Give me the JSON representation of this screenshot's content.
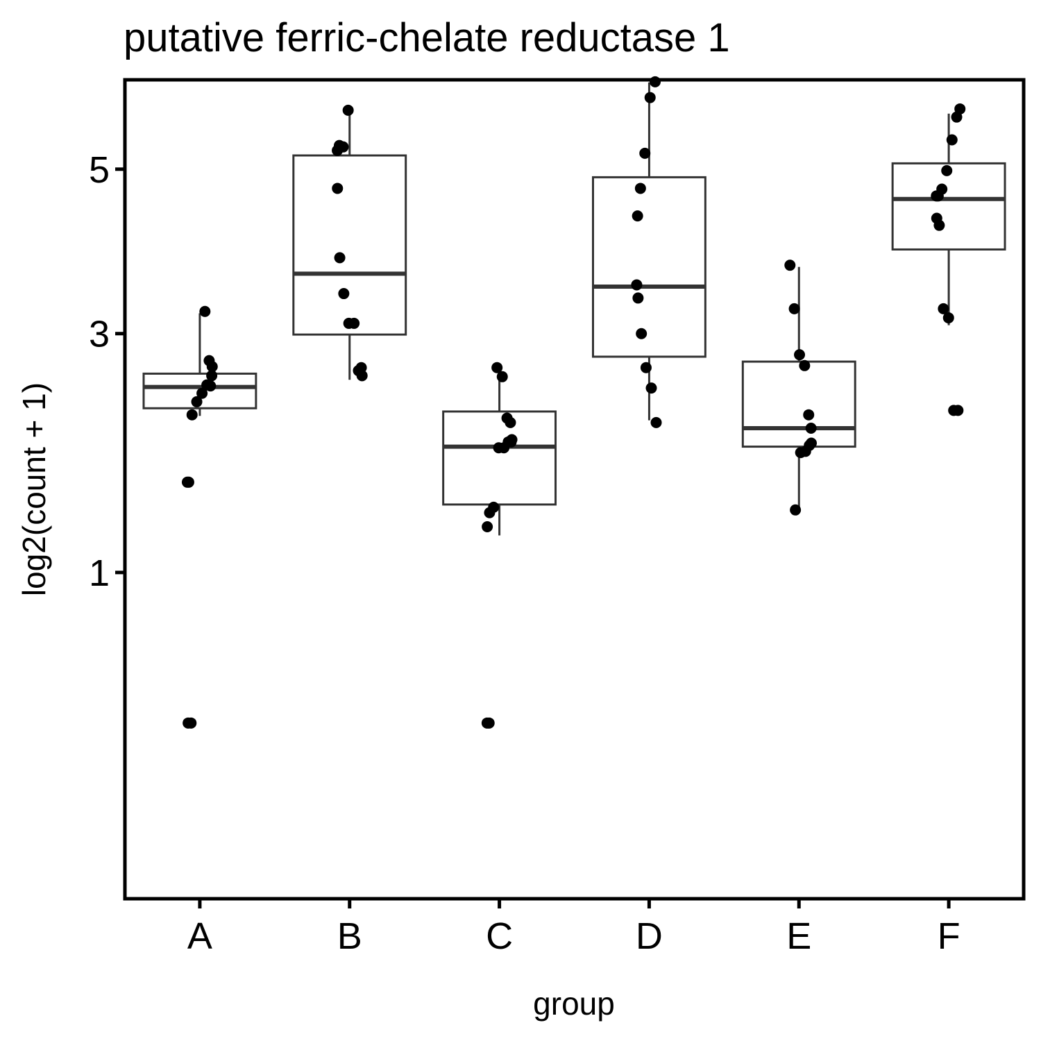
{
  "chart_data": {
    "type": "box",
    "title": "putative ferric-chelate reductase 1",
    "xlabel": "group",
    "ylabel": "log2(count + 1)",
    "y_scale": "sqrt",
    "ylim": [
      0,
      6.3
    ],
    "y_ticks": [
      1,
      3,
      5
    ],
    "grid": false,
    "categories": [
      "A",
      "B",
      "C",
      "D",
      "E",
      "F"
    ],
    "boxes": [
      {
        "group": "A",
        "whisker_low": 2.19,
        "q1": 2.26,
        "median": 2.46,
        "q3": 2.59,
        "whisker_high": 3.22
      },
      {
        "group": "B",
        "whisker_low": 2.53,
        "q1": 2.99,
        "median": 3.67,
        "q3": 5.19,
        "whisker_high": 5.81
      },
      {
        "group": "C",
        "whisker_low": 1.24,
        "q1": 1.46,
        "median": 1.92,
        "q3": 2.23,
        "whisker_high": 2.66
      },
      {
        "group": "D",
        "whisker_low": 2.15,
        "q1": 2.76,
        "median": 3.52,
        "q3": 4.89,
        "whisker_high": 6.26
      },
      {
        "group": "E",
        "whisker_low": 1.41,
        "q1": 1.92,
        "median": 2.08,
        "q3": 2.71,
        "whisker_high": 3.75
      },
      {
        "group": "F",
        "whisker_low": 3.09,
        "q1": 3.96,
        "median": 4.6,
        "q3": 5.08,
        "whisker_high": 5.79
      }
    ],
    "points": [
      {
        "group": "A",
        "y": [
          3.24,
          2.72,
          2.57,
          2.66,
          2.47,
          2.48,
          2.4,
          2.32,
          2.2,
          1.63,
          1.63,
          0.29,
          0.29
        ]
      },
      {
        "group": "B",
        "y": [
          5.84,
          5.31,
          5.33,
          5.26,
          4.74,
          3.86,
          3.44,
          3.11,
          3.11,
          2.62,
          2.65,
          2.57
        ]
      },
      {
        "group": "C",
        "y": [
          2.65,
          2.56,
          2.17,
          2.13,
          1.98,
          1.96,
          1.96,
          1.91,
          1.91,
          1.44,
          1.4,
          1.3,
          0.29,
          0.29
        ]
      },
      {
        "group": "D",
        "y": [
          6.27,
          6.03,
          5.22,
          4.74,
          4.38,
          3.54,
          3.39,
          3.0,
          2.65,
          2.45,
          2.13
        ]
      },
      {
        "group": "E",
        "y": [
          3.77,
          3.27,
          2.78,
          2.67,
          2.2,
          2.08,
          1.95,
          1.93,
          1.88,
          1.87,
          1.42
        ]
      },
      {
        "group": "F",
        "y": [
          5.86,
          5.74,
          5.41,
          4.98,
          4.73,
          4.64,
          4.64,
          4.35,
          4.26,
          3.27,
          3.17,
          2.24,
          2.24
        ]
      }
    ],
    "colors": {
      "box": "#333333",
      "point": "#000000",
      "axis": "#000000"
    }
  }
}
